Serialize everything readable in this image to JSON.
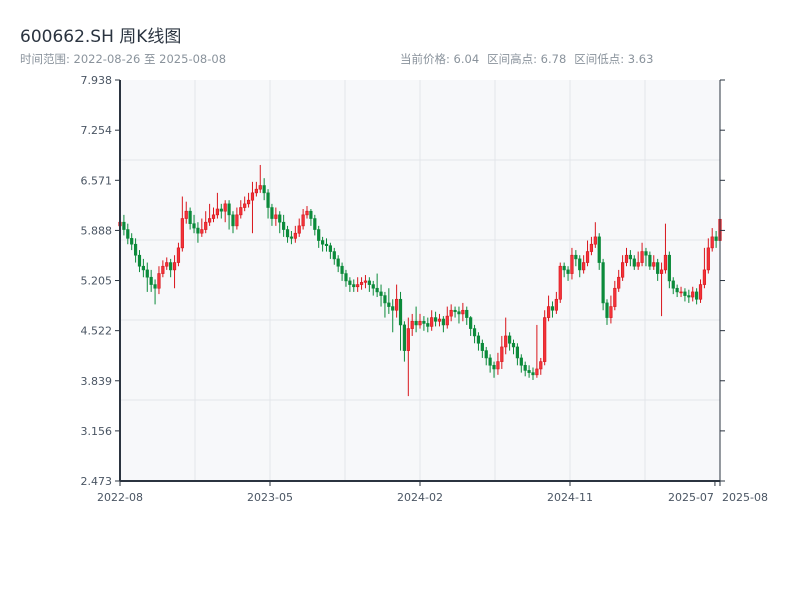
{
  "header": {
    "title": "600662.SH 周K线图",
    "range_text": "时间范围: 2022-08-26 至 2025-08-08",
    "current_price": "当前价格: 6.04",
    "range_high": "区间高点: 6.78",
    "range_low": "区间低点: 3.63"
  },
  "colors": {
    "up": "#d9151b",
    "down": "#0b8a3a",
    "axis": "#2b3440",
    "grid": "#e3e6ea",
    "plot_bg": "#f7f8fa"
  },
  "chart_data": {
    "type": "candlestick",
    "title": "600662.SH 周K线图",
    "frequency": "weekly",
    "x_start": "2022-08-26",
    "x_end": "2025-08-08",
    "ylim": [
      2.473,
      7.938
    ],
    "yticks": [
      "2.473",
      "3.156",
      "3.839",
      "4.522",
      "5.205",
      "5.888",
      "6.571",
      "7.254",
      "7.938"
    ],
    "xticks": [
      {
        "label": "2022-08",
        "index": 0
      },
      {
        "label": "2023-05",
        "index": 38.5
      },
      {
        "label": "2024-02",
        "index": 77
      },
      {
        "label": "2024-11",
        "index": 115.5
      },
      {
        "label": "2025-07",
        "index": 152.7
      },
      {
        "label": "2025-08",
        "index": 154
      }
    ],
    "grid": true,
    "close": [
      6.0,
      5.9,
      5.78,
      5.7,
      5.55,
      5.4,
      5.35,
      5.25,
      5.15,
      5.1,
      5.3,
      5.4,
      5.45,
      5.35,
      5.45,
      5.65,
      6.05,
      6.15,
      5.98,
      5.92,
      5.85,
      5.9,
      6.0,
      6.05,
      6.1,
      6.18,
      6.15,
      6.25,
      6.1,
      5.95,
      6.1,
      6.2,
      6.25,
      6.3,
      6.4,
      6.45,
      6.5,
      6.4,
      6.2,
      6.05,
      6.1,
      6.0,
      5.9,
      5.8,
      5.78,
      5.85,
      5.95,
      6.1,
      6.15,
      6.05,
      5.9,
      5.75,
      5.7,
      5.68,
      5.6,
      5.5,
      5.4,
      5.3,
      5.2,
      5.15,
      5.12,
      5.15,
      5.18,
      5.2,
      5.15,
      5.1,
      5.05,
      5.0,
      4.9,
      4.85,
      4.8,
      4.95,
      4.6,
      4.25,
      4.55,
      4.65,
      4.6,
      4.65,
      4.62,
      4.58,
      4.7,
      4.65,
      4.68,
      4.6,
      4.72,
      4.8,
      4.78,
      4.75,
      4.8,
      4.7,
      4.55,
      4.45,
      4.35,
      4.25,
      4.15,
      4.05,
      4.0,
      4.1,
      4.3,
      4.45,
      4.35,
      4.3,
      4.15,
      4.05,
      3.98,
      3.95,
      3.92,
      4.0,
      4.1,
      4.7,
      4.85,
      4.8,
      4.95,
      5.4,
      5.35,
      5.3,
      5.55,
      5.5,
      5.35,
      5.45,
      5.6,
      5.7,
      5.8,
      5.45,
      4.9,
      4.7,
      4.85,
      5.1,
      5.25,
      5.45,
      5.55,
      5.5,
      5.4,
      5.45,
      5.6,
      5.55,
      5.4,
      5.45,
      5.3,
      5.35,
      5.55,
      5.2,
      5.1,
      5.05,
      5.05,
      5.0,
      4.98,
      5.05,
      4.95,
      5.15,
      5.35,
      5.65,
      5.8,
      5.75,
      6.04
    ],
    "open": [
      5.95,
      6.0,
      5.9,
      5.78,
      5.7,
      5.55,
      5.4,
      5.35,
      5.25,
      5.15,
      5.1,
      5.3,
      5.4,
      5.45,
      5.35,
      5.45,
      5.65,
      6.05,
      6.15,
      5.98,
      5.92,
      5.85,
      5.9,
      6.0,
      6.05,
      6.1,
      6.18,
      6.15,
      6.25,
      6.1,
      5.95,
      6.1,
      6.2,
      6.25,
      6.3,
      6.4,
      6.45,
      6.5,
      6.4,
      6.2,
      6.05,
      6.1,
      6.0,
      5.9,
      5.8,
      5.78,
      5.85,
      5.95,
      6.1,
      6.15,
      6.05,
      5.9,
      5.75,
      5.7,
      5.68,
      5.6,
      5.5,
      5.4,
      5.3,
      5.2,
      5.15,
      5.12,
      5.15,
      5.18,
      5.2,
      5.15,
      5.1,
      5.05,
      5.0,
      4.9,
      4.85,
      4.8,
      4.95,
      4.6,
      4.25,
      4.55,
      4.65,
      4.6,
      4.65,
      4.62,
      4.58,
      4.7,
      4.65,
      4.68,
      4.6,
      4.72,
      4.8,
      4.78,
      4.75,
      4.8,
      4.7,
      4.55,
      4.45,
      4.35,
      4.25,
      4.15,
      4.05,
      4.0,
      4.1,
      4.3,
      4.45,
      4.35,
      4.3,
      4.15,
      4.05,
      3.98,
      3.95,
      3.92,
      4.0,
      4.1,
      4.7,
      4.85,
      4.8,
      4.95,
      5.4,
      5.35,
      5.3,
      5.55,
      5.5,
      5.35,
      5.45,
      5.6,
      5.7,
      5.8,
      5.45,
      4.9,
      4.7,
      4.85,
      5.1,
      5.25,
      5.45,
      5.55,
      5.5,
      5.4,
      5.45,
      5.6,
      5.55,
      5.4,
      5.45,
      5.3,
      5.35,
      5.55,
      5.2,
      5.1,
      5.05,
      5.05,
      5.0,
      4.98,
      5.05,
      4.95,
      5.15,
      5.35,
      5.65,
      5.8,
      5.75
    ],
    "high": [
      6.08,
      6.1,
      5.98,
      5.85,
      5.78,
      5.62,
      5.5,
      5.45,
      5.35,
      5.22,
      5.4,
      5.48,
      5.52,
      5.5,
      5.55,
      5.72,
      6.35,
      6.28,
      6.2,
      6.1,
      6.0,
      6.05,
      6.15,
      6.25,
      6.2,
      6.4,
      6.25,
      6.3,
      6.3,
      6.15,
      6.2,
      6.3,
      6.35,
      6.4,
      6.55,
      6.55,
      6.78,
      6.6,
      6.45,
      6.25,
      6.2,
      6.15,
      6.1,
      5.95,
      5.88,
      5.95,
      6.05,
      6.18,
      6.22,
      6.18,
      6.1,
      5.95,
      5.8,
      5.78,
      5.72,
      5.65,
      5.55,
      5.45,
      5.35,
      5.25,
      5.22,
      5.25,
      5.25,
      5.28,
      5.25,
      5.2,
      5.3,
      5.15,
      5.05,
      5.1,
      4.95,
      5.15,
      5.05,
      4.65,
      4.7,
      4.75,
      4.85,
      4.75,
      4.72,
      4.7,
      4.8,
      4.78,
      4.75,
      4.72,
      4.85,
      4.88,
      4.85,
      4.85,
      4.9,
      4.85,
      4.72,
      4.6,
      4.5,
      4.4,
      4.3,
      4.2,
      4.1,
      4.22,
      4.45,
      4.7,
      4.5,
      4.4,
      4.35,
      4.2,
      4.1,
      4.05,
      4.02,
      4.6,
      4.15,
      4.8,
      5.0,
      4.92,
      5.05,
      5.45,
      5.45,
      5.4,
      5.65,
      5.62,
      5.55,
      5.55,
      5.75,
      5.8,
      6.0,
      5.85,
      5.5,
      4.95,
      5.0,
      5.2,
      5.35,
      5.55,
      5.65,
      5.62,
      5.55,
      5.6,
      5.72,
      5.65,
      5.6,
      5.55,
      5.5,
      5.45,
      5.98,
      5.6,
      5.25,
      5.15,
      5.12,
      5.1,
      5.08,
      5.12,
      5.1,
      5.22,
      5.65,
      5.78,
      5.92,
      5.88,
      6.3
    ],
    "low": [
      5.9,
      5.82,
      5.7,
      5.62,
      5.45,
      5.32,
      5.25,
      5.05,
      5.05,
      4.88,
      5.02,
      5.25,
      5.35,
      5.25,
      5.1,
      5.4,
      5.6,
      5.98,
      5.9,
      5.85,
      5.72,
      5.8,
      5.85,
      5.95,
      6.0,
      6.05,
      6.05,
      6.0,
      5.9,
      5.85,
      5.9,
      6.05,
      6.15,
      6.2,
      5.85,
      6.35,
      6.4,
      6.3,
      6.05,
      5.95,
      5.95,
      5.85,
      5.8,
      5.72,
      5.7,
      5.72,
      5.8,
      5.9,
      6.05,
      5.95,
      5.82,
      5.65,
      5.6,
      5.6,
      5.5,
      5.42,
      5.32,
      5.2,
      5.12,
      5.05,
      5.05,
      5.05,
      5.08,
      5.1,
      5.05,
      5.0,
      4.98,
      4.85,
      4.7,
      4.75,
      4.5,
      4.7,
      4.25,
      4.1,
      3.63,
      4.45,
      4.5,
      4.55,
      4.52,
      4.5,
      4.52,
      4.58,
      4.58,
      4.5,
      4.55,
      4.65,
      4.7,
      4.62,
      4.65,
      4.6,
      4.45,
      4.35,
      4.25,
      4.15,
      4.05,
      3.95,
      3.88,
      3.92,
      4.0,
      4.2,
      4.25,
      4.2,
      4.05,
      3.95,
      3.9,
      3.88,
      3.85,
      3.88,
      3.92,
      4.05,
      4.65,
      4.7,
      4.75,
      4.9,
      5.25,
      5.2,
      5.22,
      5.4,
      5.25,
      5.3,
      5.4,
      5.55,
      5.65,
      5.35,
      4.8,
      4.6,
      4.62,
      4.8,
      5.05,
      5.2,
      5.4,
      5.4,
      5.35,
      5.35,
      5.4,
      5.4,
      5.35,
      5.35,
      5.2,
      4.72,
      5.3,
      5.1,
      5.02,
      4.98,
      4.98,
      4.92,
      4.9,
      4.92,
      4.88,
      4.9,
      5.1,
      5.3,
      5.6,
      5.65,
      5.7
    ]
  }
}
